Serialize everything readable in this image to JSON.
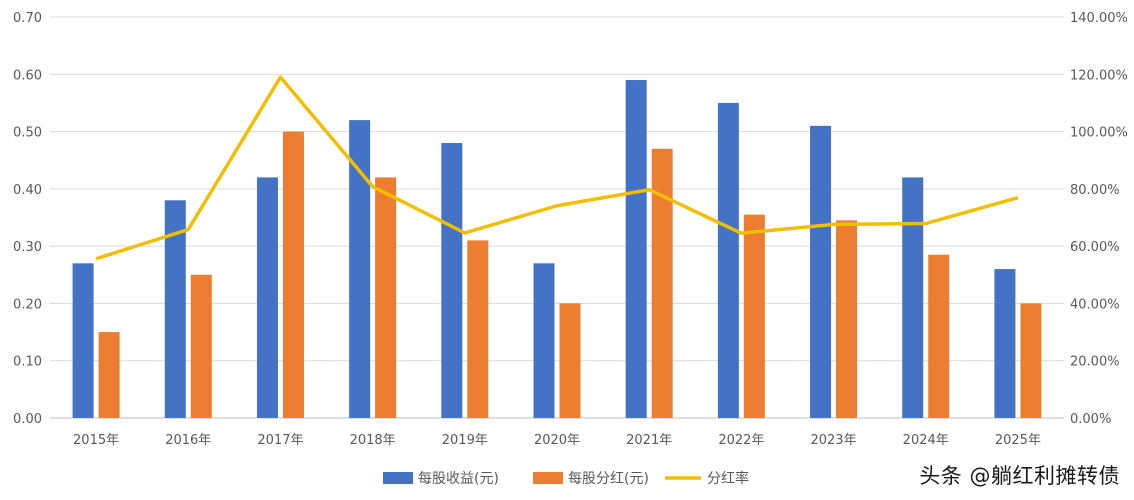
{
  "chart_data": {
    "type": "bar",
    "categories": [
      "2015年",
      "2016年",
      "2017年",
      "2018年",
      "2019年",
      "2020年",
      "2021年",
      "2022年",
      "2023年",
      "2024年",
      "2025年"
    ],
    "series": [
      {
        "name": "每股收益(元)",
        "type": "bar",
        "axis": "left",
        "color": "#4472C4",
        "values": [
          0.27,
          0.38,
          0.42,
          0.52,
          0.48,
          0.27,
          0.59,
          0.55,
          0.51,
          0.42,
          0.26
        ]
      },
      {
        "name": "每股分红(元)",
        "type": "bar",
        "axis": "left",
        "color": "#ED7D31",
        "values": [
          0.15,
          0.25,
          0.5,
          0.42,
          0.31,
          0.2,
          0.47,
          0.355,
          0.345,
          0.285,
          0.2
        ]
      },
      {
        "name": "分红率",
        "type": "line",
        "axis": "right",
        "color": "#F2BE00",
        "values": [
          55.6,
          65.8,
          119.0,
          80.8,
          64.6,
          74.1,
          79.7,
          64.5,
          67.6,
          67.9,
          76.9
        ]
      }
    ],
    "left_axis": {
      "ylim": [
        0,
        0.7
      ],
      "ticks": [
        "0.00",
        "0.10",
        "0.20",
        "0.30",
        "0.40",
        "0.50",
        "0.60",
        "0.70"
      ]
    },
    "right_axis": {
      "ylim": [
        0,
        140
      ],
      "ticks": [
        "0.00%",
        "20.00%",
        "40.00%",
        "60.00%",
        "80.00%",
        "100.00%",
        "120.00%",
        "140.00%"
      ]
    },
    "grid": true,
    "legend": "bottom-center"
  },
  "watermark": "头条 @躺红利摊转债"
}
